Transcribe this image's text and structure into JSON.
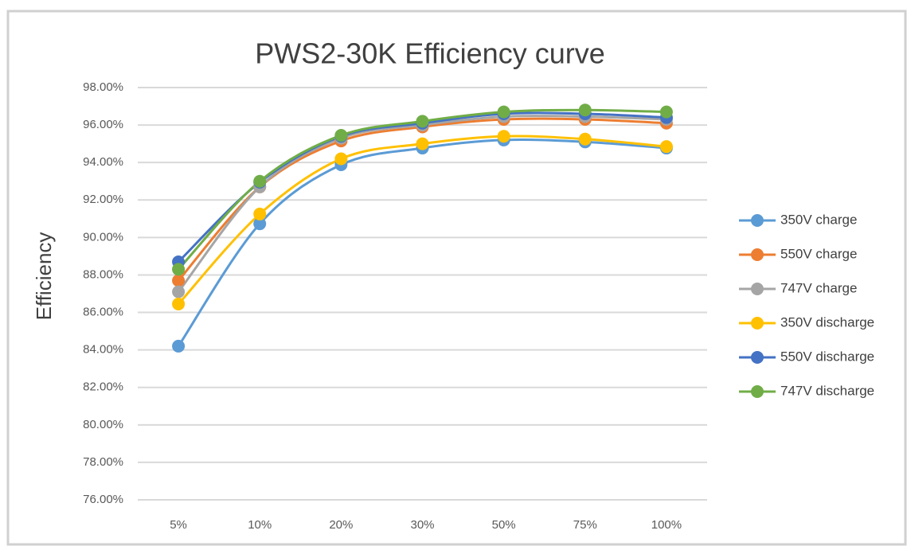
{
  "chart_data": {
    "type": "line",
    "title": "PWS2-30K Efficiency curve",
    "y_label": "Efficiency",
    "categories": [
      "5%",
      "10%",
      "20%",
      "30%",
      "50%",
      "75%",
      "100%"
    ],
    "series": [
      {
        "name": "350V charge",
        "color": "#5b9bd5",
        "values": [
          84.2,
          90.73,
          93.88,
          94.77,
          95.2,
          95.1,
          94.77
        ]
      },
      {
        "name": "550V charge",
        "color": "#ed7d31",
        "values": [
          87.7,
          92.7,
          95.15,
          95.9,
          96.3,
          96.3,
          96.1
        ]
      },
      {
        "name": "747V charge",
        "color": "#a5a5a5",
        "values": [
          87.1,
          92.7,
          95.3,
          96.0,
          96.45,
          96.45,
          96.3
        ]
      },
      {
        "name": "350V discharge",
        "color": "#ffc000",
        "values": [
          86.45,
          91.25,
          94.2,
          95.0,
          95.4,
          95.25,
          94.85
        ]
      },
      {
        "name": "550V discharge",
        "color": "#4472c4",
        "values": [
          88.7,
          92.95,
          95.4,
          96.1,
          96.6,
          96.6,
          96.4
        ]
      },
      {
        "name": "747V discharge",
        "color": "#70ad47",
        "values": [
          88.3,
          93.0,
          95.45,
          96.2,
          96.7,
          96.8,
          96.7
        ]
      }
    ],
    "ylim": [
      76,
      98
    ],
    "yticks": [
      {
        "value": 76,
        "label": "76.00%"
      },
      {
        "value": 78,
        "label": "78.00%"
      },
      {
        "value": 80,
        "label": "80.00%"
      },
      {
        "value": 82,
        "label": "82.00%"
      },
      {
        "value": 84,
        "label": "84.00%"
      },
      {
        "value": 86,
        "label": "86.00%"
      },
      {
        "value": 88,
        "label": "88.00%"
      },
      {
        "value": 90,
        "label": "90.00%"
      },
      {
        "value": 92,
        "label": "92.00%"
      },
      {
        "value": 94,
        "label": "94.00%"
      },
      {
        "value": 96,
        "label": "96.00%"
      },
      {
        "value": 98,
        "label": "98.00%"
      }
    ],
    "grid": true,
    "legend": "right"
  }
}
